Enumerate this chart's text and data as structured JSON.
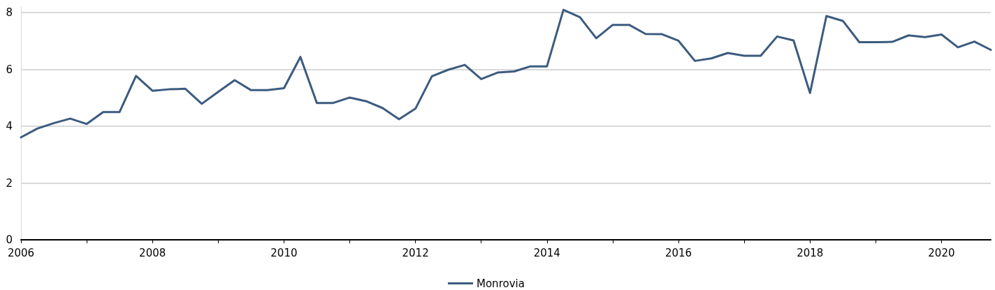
{
  "chart_data": {
    "type": "line",
    "x": [
      2006,
      2006.25,
      2006.5,
      2006.75,
      2007,
      2007.25,
      2007.5,
      2007.75,
      2008,
      2008.25,
      2008.5,
      2008.75,
      2009,
      2009.25,
      2009.5,
      2009.75,
      2010,
      2010.25,
      2010.5,
      2010.75,
      2011,
      2011.25,
      2011.5,
      2011.75,
      2012,
      2012.25,
      2012.5,
      2012.75,
      2013,
      2013.25,
      2013.5,
      2013.75,
      2014,
      2014.25,
      2014.5,
      2014.75,
      2015,
      2015.25,
      2015.5,
      2015.75,
      2016,
      2016.25,
      2016.5,
      2016.75,
      2017,
      2017.25,
      2017.5,
      2017.75,
      2018,
      2018.25,
      2018.5,
      2018.75,
      2019,
      2019.25,
      2019.5,
      2019.75,
      2020,
      2020.25,
      2020.5,
      2020.75
    ],
    "series": [
      {
        "name": "Monrovia",
        "color": "#3b5b7f",
        "values": [
          3.61,
          3.92,
          4.11,
          4.27,
          4.08,
          4.5,
          4.5,
          5.77,
          5.25,
          5.3,
          5.32,
          4.79,
          5.21,
          5.62,
          5.27,
          5.27,
          5.34,
          6.44,
          4.82,
          4.82,
          5.01,
          4.88,
          4.64,
          4.25,
          4.62,
          5.76,
          5.99,
          6.16,
          5.66,
          5.89,
          5.93,
          6.11,
          6.11,
          8.1,
          7.84,
          7.1,
          7.57,
          7.57,
          7.25,
          7.24,
          7.01,
          6.3,
          6.39,
          6.58,
          6.48,
          6.48,
          7.16,
          7.02,
          5.17,
          7.88,
          7.71,
          6.96,
          6.96,
          6.97,
          7.2,
          7.14,
          7.23,
          6.78,
          6.98,
          6.69
        ]
      }
    ],
    "xlim": [
      2006,
      2020.75
    ],
    "xticks": [
      2006,
      {
        "value": 2007,
        "label": null
      },
      2008,
      {
        "value": 2009,
        "label": null
      },
      2010,
      {
        "value": 2011,
        "label": null
      },
      2012,
      {
        "value": 2013,
        "label": null
      },
      2014,
      {
        "value": 2015,
        "label": null
      },
      2016,
      {
        "value": 2017,
        "label": null
      },
      2018,
      {
        "value": 2019,
        "label": null
      },
      2020
    ],
    "ylim": [
      0,
      8.2
    ],
    "yticks": [
      0,
      2,
      4,
      6,
      8
    ],
    "grid": "y",
    "legend": "bottom"
  }
}
